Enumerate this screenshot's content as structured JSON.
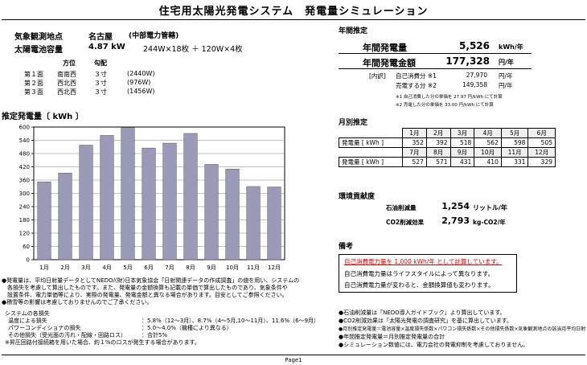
{
  "title": "住宅用太陽光発電システム　発電量シミュレーション",
  "left_header": {
    "location_label": "気象観測地点",
    "location_value": "名古屋",
    "location_note": "(中部電力管轄)",
    "capacity_label": "太陽電池容量",
    "capacity_value": "4.87 kW",
    "capacity_detail": "244W×18枚 ＋ 120W×4枚",
    "col_direction": "方位",
    "col_slope": "勾配",
    "faces": [
      {
        "name": "第１面",
        "direction": "南南西",
        "slope": "３寸",
        "watts": "(2440W)"
      },
      {
        "name": "第２面",
        "direction": "西北西",
        "slope": "３寸",
        "watts": "(976W)"
      },
      {
        "name": "第３面",
        "direction": "西北西",
        "slope": "３寸",
        "watts": "(1456W)"
      }
    ]
  },
  "chart_heading": "推定発電量〔 kWh 〕",
  "chart_data": {
    "type": "bar",
    "categories": [
      "1月",
      "2月",
      "3月",
      "4月",
      "5月",
      "6月",
      "7月",
      "8月",
      "9月",
      "10月",
      "11月",
      "12月"
    ],
    "values": [
      352,
      392,
      518,
      562,
      598,
      505,
      527,
      571,
      431,
      410,
      331,
      329
    ],
    "ylim": [
      0,
      600
    ],
    "yticks": [
      0,
      60,
      120,
      180,
      240,
      300,
      360,
      420,
      480,
      540,
      600
    ],
    "grid": true,
    "bar_color": "#9a9ab8"
  },
  "annual": {
    "heading": "年間推定",
    "gen_label": "年間発電量",
    "gen_value": "5,526",
    "gen_unit": "kWh/年",
    "amount_label": "年間発電金額",
    "amount_value": "177,328",
    "amount_unit": "円/年",
    "breakdown_label": "[内訳]",
    "self_label": "自己消費分 ※1",
    "self_value": "27,970",
    "self_unit": "円/年",
    "sell_label": "売電する分 ※2",
    "sell_value": "149,358",
    "sell_unit": "円/年",
    "note1": "※1 自己消費した分の単価を 27.97 円/kWh にて計算",
    "note2": "※2 売電した分の単価を 33.00 円/kWh にて計算"
  },
  "monthly": {
    "heading": "月別推定",
    "row_label": "発電量 [ kWh ]",
    "months_a": [
      "1月",
      "2月",
      "3月",
      "4月",
      "5月",
      "6月"
    ],
    "values_a": [
      "352",
      "392",
      "518",
      "562",
      "598",
      "505"
    ],
    "months_b": [
      "7月",
      "8月",
      "9月",
      "10月",
      "11月",
      "12月"
    ],
    "values_b": [
      "527",
      "571",
      "431",
      "410",
      "331",
      "329"
    ]
  },
  "env": {
    "heading": "環境貢献度",
    "oil_label": "石油削減量",
    "oil_value": "1,254",
    "oil_unit": "リットル/年",
    "co2_label": "CO2削減効果",
    "co2_value": "2,793",
    "co2_unit": "kg-CO2/年"
  },
  "remarks": {
    "heading": "備考",
    "line1": "自己消費電力量を 1,000 kWh/年 として計算しています。",
    "line2": "自己消費電力量はライフスタイルによって異なります。",
    "line3": "自己消費電力量が変わると、金額換算値も変わります。"
  },
  "left_notes": {
    "n1": "●発電量は、平均日射量データとしてNEDO/(財)日本気象協会「日射関連データの作成調査」の値を用い、システムの",
    "n2": "　各損失を考慮して算出したものです。また、発電量の金額換算も記載の単価で算出したものであり、気象条件や",
    "n3": "　設置条件、電力単価等により、実際の発電量、発電金額と異なる場合があります。目安としてご参照ください。",
    "n4": "●積雪等の影響は考慮しておりませんのでご了承ください。",
    "loss_heading": "システムの各損失",
    "temp_label": "温度による損失",
    "temp_value": "：5.8%（12〜3月）、8.7%（4〜5月,10〜11月）、11.6%（6〜9月）",
    "pcs_label": "パワーコンディショナの損失",
    "pcs_value": "：5.0〜4.0%（機種により異なる）",
    "other_label": "その他損失（受光面の汚れ・配線・回路ロス）",
    "other_value": "：合計5%",
    "step_note": "※昇圧回路付接続箱を用いた場合、約１%のロスが発生する場合があります。"
  },
  "right_notes": {
    "r1": "●石油削減量は「NEDO導入ガイドブック」より算出しています。",
    "r2": "●CO2削減効果は「太陽光発電の調査研究」を基に算出しています。",
    "r3": "●月別推定発電量＝電池容量×温度損失係数×パワコン損失係数×その他損失係数×気象観測地点の該当月平均日射",
    "r4": "●年間推定発電量＝月別推定発電量の合計",
    "r5": "●シミュレーション数値には、電力会社の発電抑制を考慮しておりません。"
  },
  "footer": {
    "page": "Page1"
  }
}
